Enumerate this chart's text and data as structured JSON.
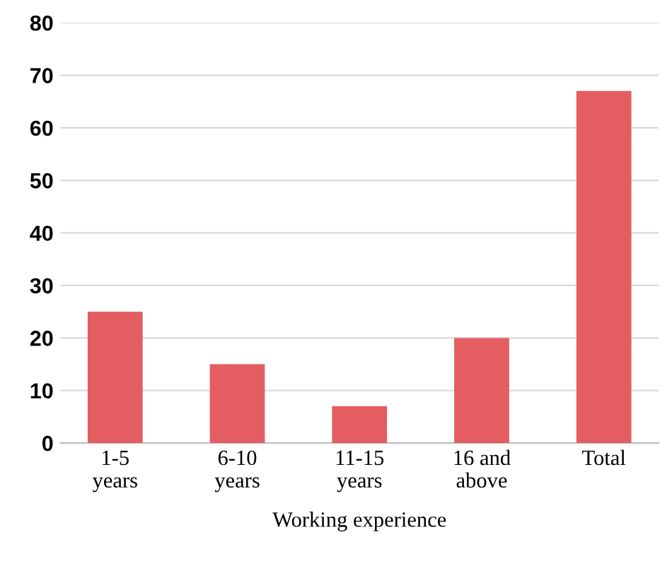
{
  "chart_data": {
    "type": "bar",
    "xlabel": "Working experience",
    "categories": [
      "1-5\nyears",
      "6-10\nyears",
      "11-15\nyears",
      "16 and\nabove",
      "Total"
    ],
    "values": [
      25,
      15,
      7,
      20,
      67
    ],
    "color": "#e35d61",
    "ylim": [
      0,
      80
    ],
    "yticks": [
      0,
      10,
      20,
      30,
      40,
      50,
      60,
      70,
      80
    ],
    "grid": "y",
    "legend": false
  }
}
